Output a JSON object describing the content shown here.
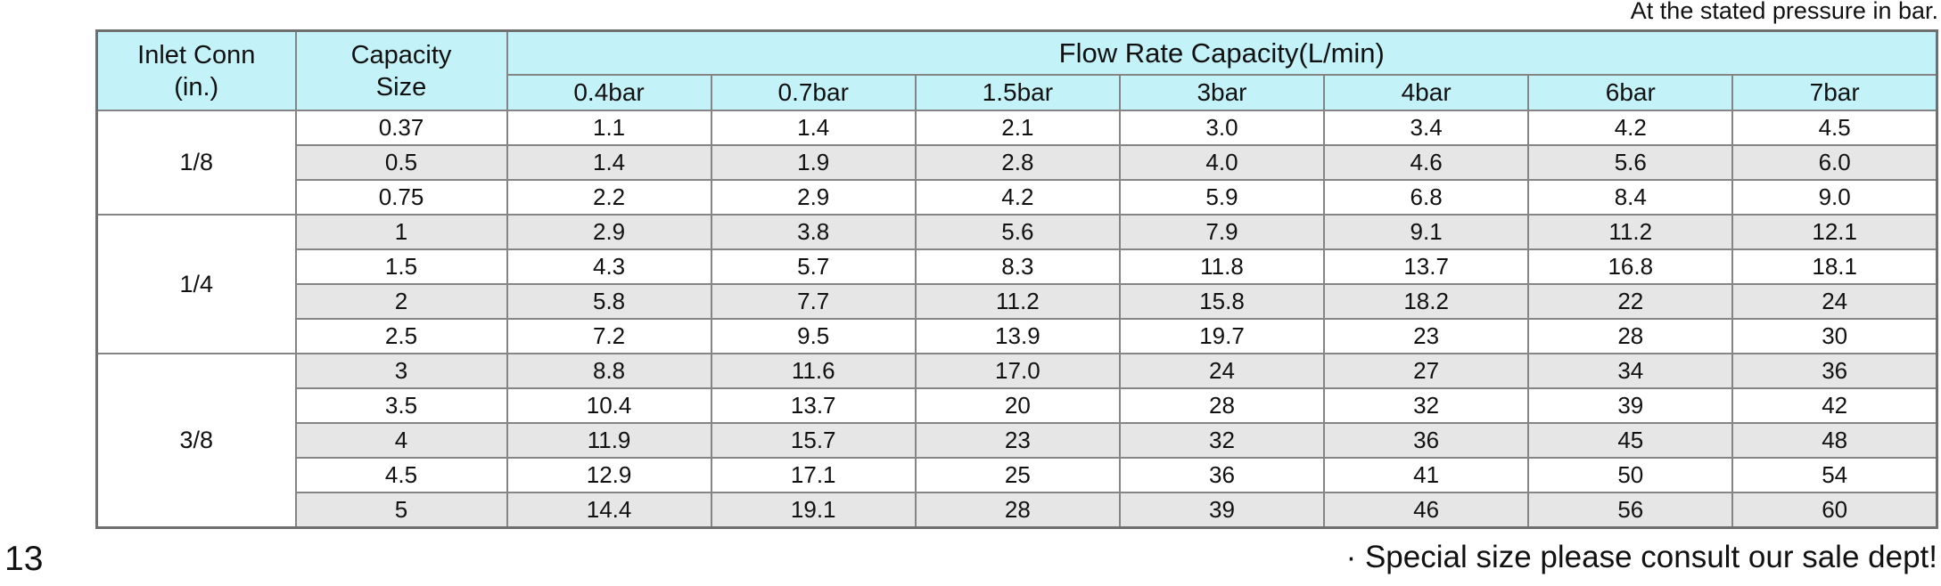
{
  "colors": {
    "header_bg": "#c3f3f8",
    "stripe_bg": "#e6e6e6",
    "border": "#858585",
    "border_outer": "#6f6f6f",
    "text": "#111111"
  },
  "page": {
    "top_note": "At the stated pressure in bar.",
    "page_number": "13",
    "bottom_note": "· Special size please consult our sale dept!"
  },
  "table": {
    "columns": {
      "inlet_line1": "Inlet Conn",
      "inlet_line2": "(in.)",
      "capacity_line1": "Capacity",
      "capacity_line2": "Size",
      "flow_group": "Flow Rate Capacity(L/min)",
      "pressures": [
        "0.4bar",
        "0.7bar",
        "1.5bar",
        "3bar",
        "4bar",
        "6bar",
        "7bar"
      ]
    },
    "groups": [
      {
        "inlet": "1/8",
        "rows": [
          {
            "size": "0.37",
            "values": [
              "1.1",
              "1.4",
              "2.1",
              "3.0",
              "3.4",
              "4.2",
              "4.5"
            ]
          },
          {
            "size": "0.5",
            "values": [
              "1.4",
              "1.9",
              "2.8",
              "4.0",
              "4.6",
              "5.6",
              "6.0"
            ]
          },
          {
            "size": "0.75",
            "values": [
              "2.2",
              "2.9",
              "4.2",
              "5.9",
              "6.8",
              "8.4",
              "9.0"
            ]
          }
        ]
      },
      {
        "inlet": "1/4",
        "rows": [
          {
            "size": "1",
            "values": [
              "2.9",
              "3.8",
              "5.6",
              "7.9",
              "9.1",
              "11.2",
              "12.1"
            ]
          },
          {
            "size": "1.5",
            "values": [
              "4.3",
              "5.7",
              "8.3",
              "11.8",
              "13.7",
              "16.8",
              "18.1"
            ]
          },
          {
            "size": "2",
            "values": [
              "5.8",
              "7.7",
              "11.2",
              "15.8",
              "18.2",
              "22",
              "24"
            ]
          },
          {
            "size": "2.5",
            "values": [
              "7.2",
              "9.5",
              "13.9",
              "19.7",
              "23",
              "28",
              "30"
            ]
          }
        ]
      },
      {
        "inlet": "3/8",
        "rows": [
          {
            "size": "3",
            "values": [
              "8.8",
              "11.6",
              "17.0",
              "24",
              "27",
              "34",
              "36"
            ]
          },
          {
            "size": "3.5",
            "values": [
              "10.4",
              "13.7",
              "20",
              "28",
              "32",
              "39",
              "42"
            ]
          },
          {
            "size": "4",
            "values": [
              "11.9",
              "15.7",
              "23",
              "32",
              "36",
              "45",
              "48"
            ]
          },
          {
            "size": "4.5",
            "values": [
              "12.9",
              "17.1",
              "25",
              "36",
              "41",
              "50",
              "54"
            ]
          },
          {
            "size": "5",
            "values": [
              "14.4",
              "19.1",
              "28",
              "39",
              "46",
              "56",
              "60"
            ]
          }
        ]
      }
    ]
  }
}
